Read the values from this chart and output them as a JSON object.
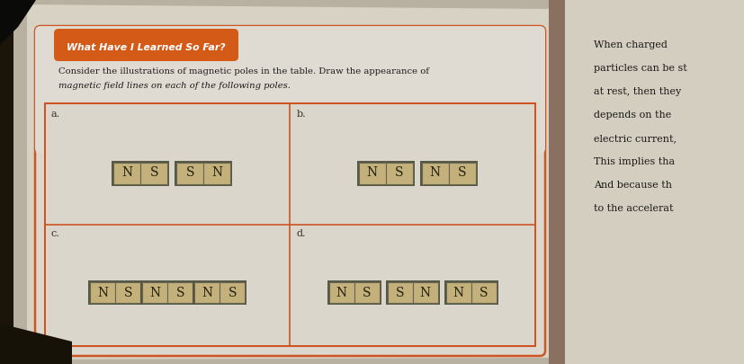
{
  "page_bg_left": "#c8c0b0",
  "page_bg_right": "#d8d0c0",
  "content_bg": "#e8e4dc",
  "table_bg": "#ddd8ce",
  "dark_corner": "#1a1a1a",
  "orange_header_bg": "#d45a18",
  "header_text": "What Have I Learned So Far?",
  "instruction_line1": "Consider the illustrations of magnetic poles in the table. Draw the appearance of",
  "instruction_line2": "magnetic field lines on each of the following poles.",
  "table_border": "#cc5522",
  "magnet_bg": "#c8b890",
  "magnet_border": "#666655",
  "right_text_lines": [
    "When charged",
    "particles can be st",
    "at rest, then they",
    "depends on the",
    "electric current,",
    "This implies tha",
    "And because th",
    "to the accelerat"
  ],
  "section_a_magnets": [
    [
      "N",
      "S"
    ],
    [
      "S",
      "N"
    ]
  ],
  "section_b_magnets": [
    [
      "N",
      "S"
    ],
    [
      "N",
      "S"
    ]
  ],
  "section_c_magnets": [
    [
      "N",
      "S"
    ],
    [
      "N",
      "S"
    ],
    [
      "N",
      "S"
    ]
  ],
  "section_d_magnets": [
    [
      "N",
      "S"
    ],
    [
      "S",
      "N"
    ],
    [
      "N",
      "S"
    ]
  ]
}
